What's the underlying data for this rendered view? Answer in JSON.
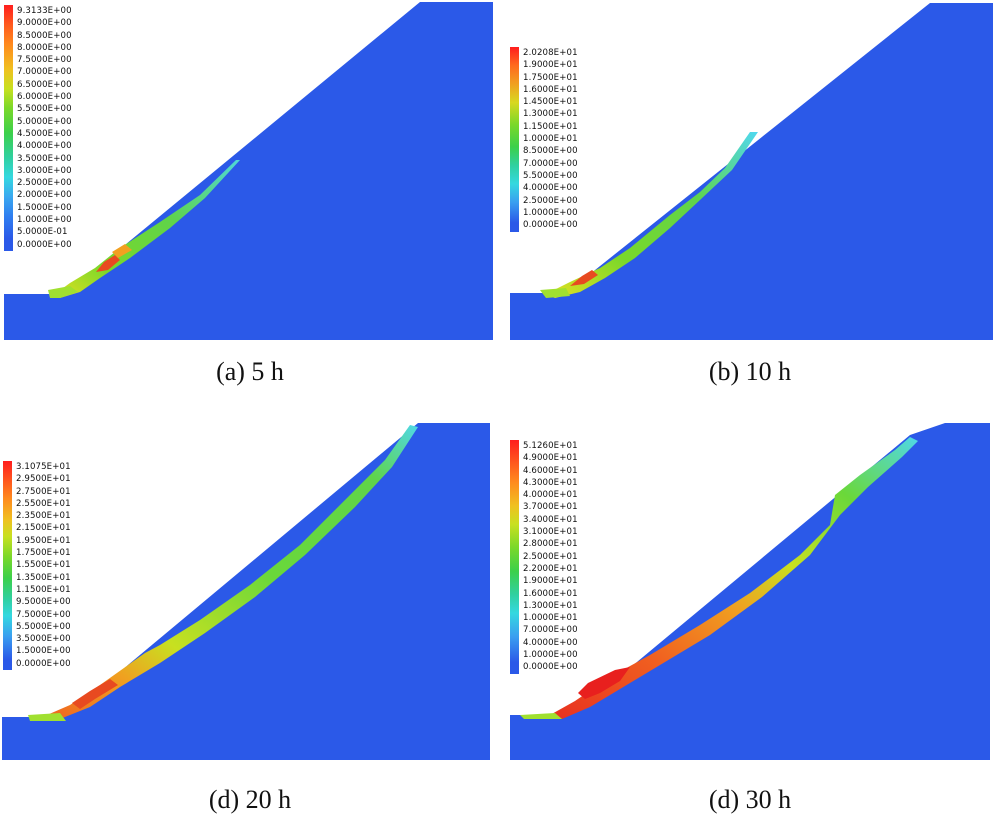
{
  "panels": [
    {
      "caption": "(a) 5 h",
      "legend_labels": [
        "9.3133E+00",
        "9.0000E+00",
        "8.5000E+00",
        "8.0000E+00",
        "7.5000E+00",
        "7.0000E+00",
        "6.5000E+00",
        "6.0000E+00",
        "5.5000E+00",
        "5.0000E+00",
        "4.5000E+00",
        "4.0000E+00",
        "3.5000E+00",
        "3.0000E+00",
        "2.5000E+00",
        "2.0000E+00",
        "1.5000E+00",
        "1.0000E+00",
        "5.0000E-01",
        "0.0000E+00"
      ]
    },
    {
      "caption": "(b) 10 h",
      "legend_labels": [
        "2.0208E+01",
        "1.9000E+01",
        "1.7500E+01",
        "1.6000E+01",
        "1.4500E+01",
        "1.3000E+01",
        "1.1500E+01",
        "1.0000E+01",
        "8.5000E+00",
        "7.0000E+00",
        "5.5000E+00",
        "4.0000E+00",
        "2.5000E+00",
        "1.0000E+00",
        "0.0000E+00"
      ]
    },
    {
      "caption": "(d) 20 h",
      "legend_labels": [
        "3.1075E+01",
        "2.9500E+01",
        "2.7500E+01",
        "2.5500E+01",
        "2.3500E+01",
        "2.1500E+01",
        "1.9500E+01",
        "1.7500E+01",
        "1.5500E+01",
        "1.3500E+01",
        "1.1500E+01",
        "9.5000E+00",
        "7.5000E+00",
        "5.5000E+00",
        "3.5000E+00",
        "1.5000E+00",
        "0.0000E+00"
      ]
    },
    {
      "caption": "(d) 30 h",
      "legend_labels": [
        "5.1260E+01",
        "4.9000E+01",
        "4.6000E+01",
        "4.3000E+01",
        "4.0000E+01",
        "3.7000E+01",
        "3.4000E+01",
        "3.1000E+01",
        "2.8000E+01",
        "2.5000E+01",
        "2.2000E+01",
        "1.9000E+01",
        "1.6000E+01",
        "1.3000E+01",
        "1.0000E+01",
        "7.0000E+00",
        "4.0000E+00",
        "1.0000E+00",
        "0.0000E+00"
      ]
    }
  ],
  "colors": {
    "mesh": "#2b59e8",
    "background": "#ffffff"
  }
}
